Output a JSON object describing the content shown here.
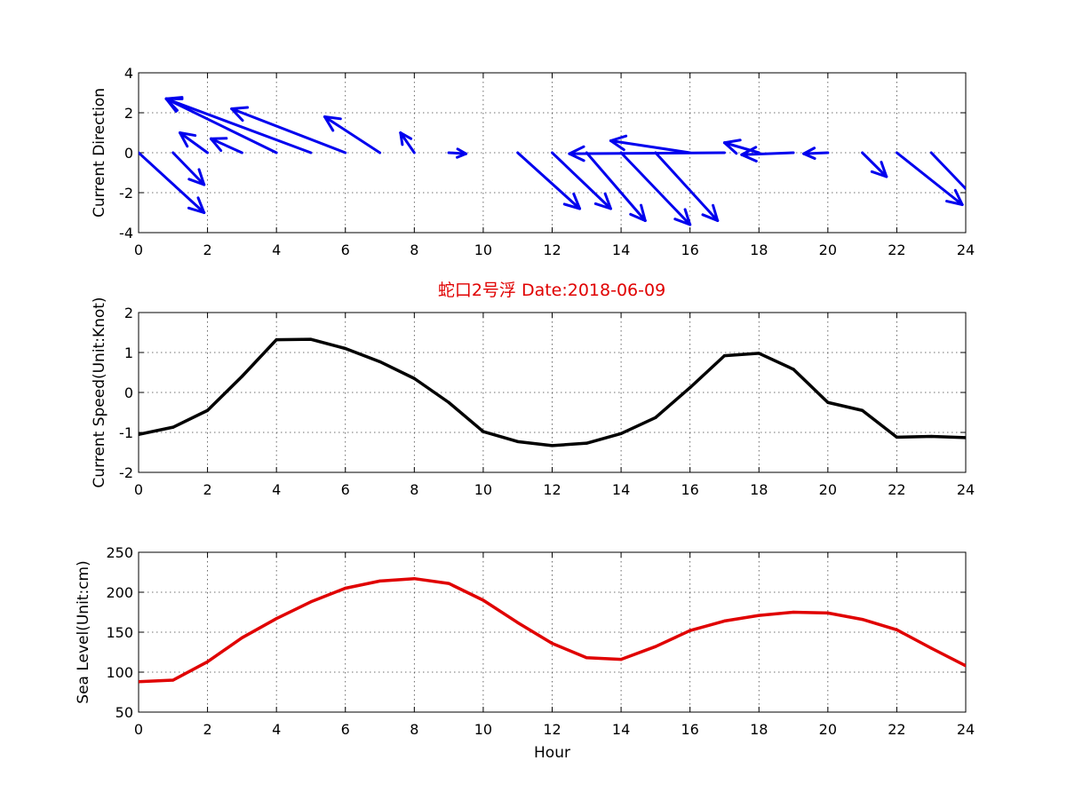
{
  "figure_title": "蛇口2号浮   Date:2018-06-09",
  "chart_data": [
    {
      "type": "quiver",
      "ylabel": "Current Direction",
      "xlabel": "",
      "xlim": [
        0,
        24
      ],
      "ylim": [
        -4,
        4
      ],
      "xticks": [
        "0",
        "2",
        "4",
        "6",
        "8",
        "10",
        "12",
        "14",
        "16",
        "18",
        "20",
        "22",
        "24"
      ],
      "yticks": [
        "-4",
        "-2",
        "0",
        "2",
        "4"
      ],
      "grid": true,
      "color": "#0000ee",
      "x": [
        0,
        1,
        2,
        3,
        4,
        5,
        6,
        7,
        8,
        9,
        10,
        11,
        12,
        13,
        14,
        15,
        16,
        17,
        18,
        19,
        20,
        21,
        22,
        23,
        24
      ],
      "u": [
        1.9,
        0.9,
        -0.8,
        -0.9,
        -3.2,
        -4.2,
        -3.3,
        -1.6,
        -0.4,
        0.5,
        0,
        1.8,
        1.7,
        1.7,
        2.0,
        1.8,
        -2.3,
        -4.5,
        -1.0,
        -1.5,
        -0.7,
        0.7,
        1.9,
        1.5,
        0
      ],
      "v": [
        -3.0,
        -1.6,
        1.0,
        0.7,
        2.7,
        2.7,
        2.2,
        1.8,
        1.0,
        -0.05,
        0,
        -2.8,
        -2.8,
        -3.4,
        -3.6,
        -3.4,
        0.6,
        -0.05,
        0.5,
        -0.1,
        -0.05,
        -1.2,
        -2.6,
        -2.7,
        0
      ]
    },
    {
      "type": "line",
      "ylabel": "Current Speed(Unit:Knot)",
      "xlabel": "",
      "xlim": [
        0,
        24
      ],
      "ylim": [
        -2,
        2
      ],
      "xticks": [
        "0",
        "2",
        "4",
        "6",
        "8",
        "10",
        "12",
        "14",
        "16",
        "18",
        "20",
        "22",
        "24"
      ],
      "yticks": [
        "-2",
        "-1",
        "0",
        "1",
        "2"
      ],
      "grid": true,
      "color": "#000000",
      "x": [
        0,
        1,
        2,
        3,
        4,
        5,
        6,
        7,
        8,
        9,
        10,
        11,
        12,
        13,
        14,
        15,
        16,
        17,
        18,
        19,
        20,
        21,
        22,
        23,
        24
      ],
      "y": [
        -1.05,
        -0.87,
        -0.45,
        0.4,
        1.32,
        1.33,
        1.1,
        0.77,
        0.35,
        -0.25,
        -0.98,
        -1.23,
        -1.33,
        -1.27,
        -1.03,
        -0.63,
        0.12,
        0.92,
        0.98,
        0.58,
        -0.25,
        -0.45,
        -1.12,
        -1.1,
        -1.13
      ]
    },
    {
      "type": "line",
      "ylabel": "Sea Level(Unit:cm)",
      "xlabel": "Hour",
      "xlim": [
        0,
        24
      ],
      "ylim": [
        50,
        250
      ],
      "xticks": [
        "0",
        "2",
        "4",
        "6",
        "8",
        "10",
        "12",
        "14",
        "16",
        "18",
        "20",
        "22",
        "24"
      ],
      "yticks": [
        "50",
        "100",
        "150",
        "200",
        "250"
      ],
      "grid": true,
      "color": "#e00000",
      "x": [
        0,
        1,
        2,
        3,
        4,
        5,
        6,
        7,
        8,
        9,
        10,
        11,
        12,
        13,
        14,
        15,
        16,
        17,
        18,
        19,
        20,
        21,
        22,
        23,
        24
      ],
      "y": [
        88,
        90,
        113,
        143,
        167,
        188,
        205,
        214,
        217,
        211,
        190,
        162,
        136,
        118,
        116,
        132,
        152,
        164,
        171,
        175,
        174,
        166,
        153,
        130,
        108
      ]
    }
  ]
}
